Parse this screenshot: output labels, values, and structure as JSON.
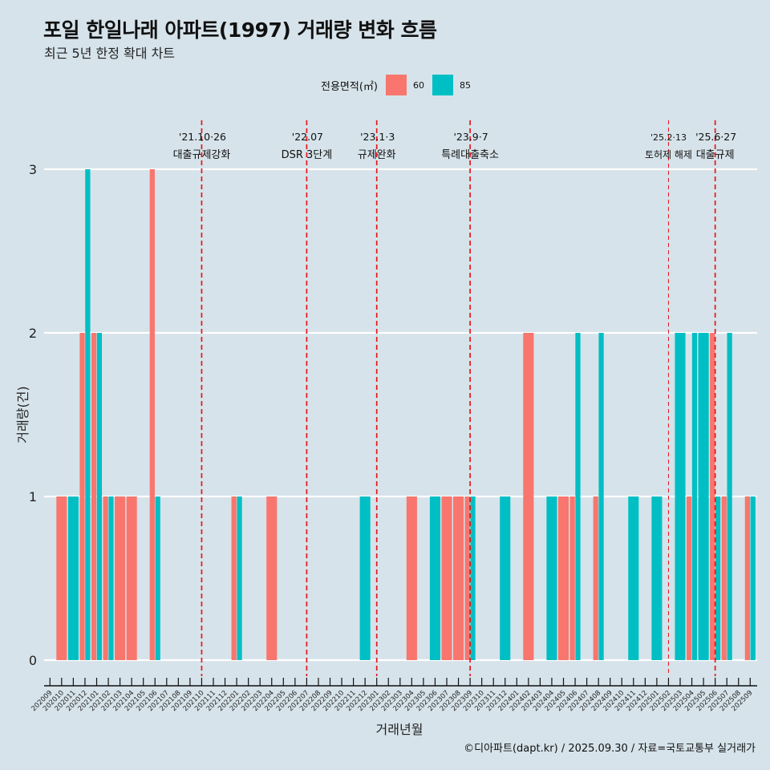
{
  "header": {
    "title": "포일 한일나래 아파트(1997) 거래량 변화 흐름",
    "subtitle": "최근 5년 한정 확대 차트"
  },
  "legend": {
    "title": "전용면적(㎡)",
    "items": [
      {
        "label": "60",
        "color": "#F8766D"
      },
      {
        "label": "85",
        "color": "#00BFC4"
      }
    ]
  },
  "caption": "©디아파트(dapt.kr) / 2025.09.30 / 자료=국토교통부 실거래가",
  "chart_data": {
    "type": "bar",
    "title": "포일 한일나래 아파트(1997) 거래량 변화 흐름",
    "xlabel": "거래년월",
    "ylabel": "거래량(건)",
    "ylim": [
      0,
      3
    ],
    "yticks": [
      "0",
      "1",
      "2",
      "3"
    ],
    "categories": [
      "202009",
      "202010",
      "202011",
      "202012",
      "202101",
      "202102",
      "202103",
      "202104",
      "202105",
      "202106",
      "202107",
      "202108",
      "202109",
      "202110",
      "202111",
      "202112",
      "202201",
      "202202",
      "202203",
      "202204",
      "202205",
      "202206",
      "202207",
      "202208",
      "202209",
      "202210",
      "202211",
      "202212",
      "202301",
      "202302",
      "202303",
      "202304",
      "202305",
      "202306",
      "202307",
      "202308",
      "202309",
      "202310",
      "202311",
      "202312",
      "202401",
      "202402",
      "202403",
      "202404",
      "202405",
      "202406",
      "202407",
      "202408",
      "202409",
      "202410",
      "202411",
      "202412",
      "202501",
      "202502",
      "202503",
      "202504",
      "202505",
      "202506",
      "202507",
      "202508",
      "202509"
    ],
    "series": [
      {
        "name": "60",
        "color": "#F8766D",
        "values": [
          0,
          1,
          0,
          2,
          2,
          1,
          1,
          1,
          0,
          3,
          0,
          0,
          0,
          0,
          0,
          0,
          1,
          0,
          0,
          1,
          0,
          0,
          0,
          0,
          0,
          0,
          0,
          0,
          0,
          0,
          0,
          1,
          0,
          0,
          1,
          1,
          1,
          0,
          0,
          0,
          0,
          2,
          0,
          0,
          1,
          1,
          0,
          1,
          0,
          0,
          0,
          0,
          0,
          0,
          0,
          1,
          0,
          2,
          1,
          0,
          1
        ]
      },
      {
        "name": "85",
        "color": "#00BFC4",
        "values": [
          0,
          0,
          1,
          3,
          2,
          1,
          0,
          0,
          0,
          1,
          0,
          0,
          0,
          0,
          0,
          0,
          1,
          0,
          0,
          0,
          0,
          0,
          0,
          0,
          0,
          0,
          0,
          1,
          0,
          0,
          0,
          0,
          0,
          1,
          0,
          0,
          1,
          0,
          0,
          1,
          0,
          0,
          0,
          1,
          0,
          2,
          0,
          2,
          0,
          0,
          1,
          0,
          1,
          0,
          2,
          2,
          2,
          1,
          2,
          0,
          1
        ]
      }
    ],
    "annotations": [
      {
        "month": "202110",
        "date": "'21.10·26",
        "event": "대출규제강화"
      },
      {
        "month": "202207",
        "date": "'22.07",
        "event": "DSR 3단계"
      },
      {
        "month": "202301",
        "date": "'23.1·3",
        "event": "규제완화"
      },
      {
        "month": "202309",
        "date": "'23.9·7",
        "event": "특례대출축소"
      },
      {
        "month": "202502",
        "date": "'25.2·13",
        "event": "토허제 해제",
        "minor": true
      },
      {
        "month": "202506",
        "date": "'25.6·27",
        "event": "대출규제"
      }
    ],
    "grid": "horizontal",
    "legend_position": "top"
  }
}
